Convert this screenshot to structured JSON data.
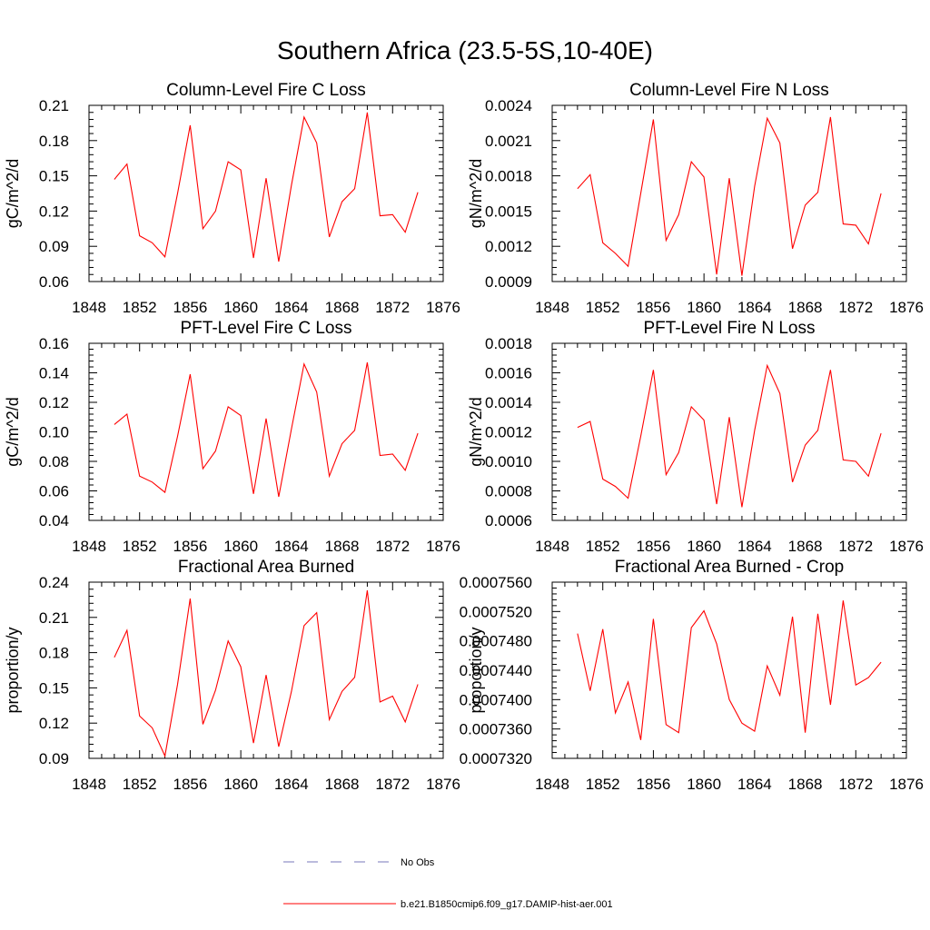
{
  "title": "Southern Africa (23.5-5S,10-40E)",
  "colors": {
    "model": "#ff0000",
    "obs": "#7777bb",
    "axis": "#000000"
  },
  "legend": [
    {
      "label": "No Obs",
      "style": "dashed",
      "color": "#7777bb"
    },
    {
      "label": "b.e21.B1850cmip6.f09_g17.DAMIP-hist-aer.001",
      "style": "solid",
      "color": "#ff0000"
    }
  ],
  "chart_data": [
    {
      "type": "line",
      "title": "Column-Level Fire C Loss",
      "ylabel": "gC/m^2/d",
      "xlim": [
        1848,
        1876
      ],
      "xticks": [
        "1848",
        "1852",
        "1856",
        "1860",
        "1864",
        "1868",
        "1872",
        "1876"
      ],
      "ylim": [
        0.06,
        0.21
      ],
      "yticks": [
        "0.06",
        "0.09",
        "0.12",
        "0.15",
        "0.18",
        "0.21"
      ],
      "x": [
        1850,
        1851,
        1852,
        1853,
        1854,
        1855,
        1856,
        1857,
        1858,
        1859,
        1860,
        1861,
        1862,
        1863,
        1864,
        1865,
        1866,
        1867,
        1868,
        1869,
        1870,
        1871,
        1872,
        1873,
        1874
      ],
      "series": [
        {
          "name": "b.e21.B1850cmip6.f09_g17.DAMIP-hist-aer.001",
          "values": [
            0.147,
            0.16,
            0.099,
            0.093,
            0.081,
            0.135,
            0.193,
            0.105,
            0.12,
            0.162,
            0.155,
            0.08,
            0.148,
            0.077,
            0.142,
            0.2,
            0.178,
            0.098,
            0.128,
            0.139,
            0.204,
            0.116,
            0.117,
            0.102,
            0.136
          ]
        }
      ]
    },
    {
      "type": "line",
      "title": "Column-Level Fire N Loss",
      "ylabel": "gN/m^2/d",
      "xlim": [
        1848,
        1876
      ],
      "xticks": [
        "1848",
        "1852",
        "1856",
        "1860",
        "1864",
        "1868",
        "1872",
        "1876"
      ],
      "ylim": [
        0.0009,
        0.0024
      ],
      "yticks": [
        "0.0009",
        "0.0012",
        "0.0015",
        "0.0018",
        "0.0021",
        "0.0024"
      ],
      "x": [
        1850,
        1851,
        1852,
        1853,
        1854,
        1855,
        1856,
        1857,
        1858,
        1859,
        1860,
        1861,
        1862,
        1863,
        1864,
        1865,
        1866,
        1867,
        1868,
        1869,
        1870,
        1871,
        1872,
        1873,
        1874
      ],
      "series": [
        {
          "name": "b.e21.B1850cmip6.f09_g17.DAMIP-hist-aer.001",
          "values": [
            0.00169,
            0.00181,
            0.00123,
            0.00114,
            0.00103,
            0.00165,
            0.00228,
            0.00125,
            0.00147,
            0.00192,
            0.00179,
            0.00096,
            0.00178,
            0.00095,
            0.00171,
            0.00229,
            0.00208,
            0.00118,
            0.00155,
            0.00166,
            0.0023,
            0.00139,
            0.00138,
            0.00122,
            0.00165
          ]
        }
      ]
    },
    {
      "type": "line",
      "title": "PFT-Level Fire C Loss",
      "ylabel": "gC/m^2/d",
      "xlim": [
        1848,
        1876
      ],
      "xticks": [
        "1848",
        "1852",
        "1856",
        "1860",
        "1864",
        "1868",
        "1872",
        "1876"
      ],
      "ylim": [
        0.04,
        0.16
      ],
      "yticks": [
        "0.04",
        "0.06",
        "0.08",
        "0.10",
        "0.12",
        "0.14",
        "0.16"
      ],
      "x": [
        1850,
        1851,
        1852,
        1853,
        1854,
        1855,
        1856,
        1857,
        1858,
        1859,
        1860,
        1861,
        1862,
        1863,
        1864,
        1865,
        1866,
        1867,
        1868,
        1869,
        1870,
        1871,
        1872,
        1873,
        1874
      ],
      "series": [
        {
          "name": "b.e21.B1850cmip6.f09_g17.DAMIP-hist-aer.001",
          "values": [
            0.105,
            0.112,
            0.07,
            0.066,
            0.059,
            0.097,
            0.139,
            0.075,
            0.087,
            0.117,
            0.111,
            0.058,
            0.109,
            0.056,
            0.102,
            0.146,
            0.127,
            0.07,
            0.092,
            0.101,
            0.147,
            0.084,
            0.085,
            0.074,
            0.099
          ]
        }
      ]
    },
    {
      "type": "line",
      "title": "PFT-Level Fire N Loss",
      "ylabel": "gN/m^2/d",
      "xlim": [
        1848,
        1876
      ],
      "xticks": [
        "1848",
        "1852",
        "1856",
        "1860",
        "1864",
        "1868",
        "1872",
        "1876"
      ],
      "ylim": [
        0.0006,
        0.0018
      ],
      "yticks": [
        "0.0006",
        "0.0008",
        "0.0010",
        "0.0012",
        "0.0014",
        "0.0016",
        "0.0018"
      ],
      "x": [
        1850,
        1851,
        1852,
        1853,
        1854,
        1855,
        1856,
        1857,
        1858,
        1859,
        1860,
        1861,
        1862,
        1863,
        1864,
        1865,
        1866,
        1867,
        1868,
        1869,
        1870,
        1871,
        1872,
        1873,
        1874
      ],
      "series": [
        {
          "name": "b.e21.B1850cmip6.f09_g17.DAMIP-hist-aer.001",
          "values": [
            0.00123,
            0.00127,
            0.00088,
            0.00083,
            0.00075,
            0.00117,
            0.00162,
            0.00091,
            0.00106,
            0.00137,
            0.00128,
            0.00071,
            0.0013,
            0.00069,
            0.00121,
            0.00165,
            0.00146,
            0.00086,
            0.00111,
            0.00121,
            0.00162,
            0.00101,
            0.001,
            0.0009,
            0.00119
          ]
        }
      ]
    },
    {
      "type": "line",
      "title": "Fractional Area Burned",
      "ylabel": "proportion/y",
      "xlim": [
        1848,
        1876
      ],
      "xticks": [
        "1848",
        "1852",
        "1856",
        "1860",
        "1864",
        "1868",
        "1872",
        "1876"
      ],
      "ylim": [
        0.09,
        0.24
      ],
      "yticks": [
        "0.09",
        "0.12",
        "0.15",
        "0.18",
        "0.21",
        "0.24"
      ],
      "x": [
        1850,
        1851,
        1852,
        1853,
        1854,
        1855,
        1856,
        1857,
        1858,
        1859,
        1860,
        1861,
        1862,
        1863,
        1864,
        1865,
        1866,
        1867,
        1868,
        1869,
        1870,
        1871,
        1872,
        1873,
        1874
      ],
      "series": [
        {
          "name": "b.e21.B1850cmip6.f09_g17.DAMIP-hist-aer.001",
          "values": [
            0.176,
            0.199,
            0.126,
            0.116,
            0.092,
            0.153,
            0.226,
            0.119,
            0.148,
            0.19,
            0.168,
            0.103,
            0.161,
            0.1,
            0.147,
            0.203,
            0.214,
            0.123,
            0.147,
            0.159,
            0.233,
            0.138,
            0.143,
            0.121,
            0.153
          ]
        }
      ]
    },
    {
      "type": "line",
      "title": "Fractional Area Burned - Crop",
      "ylabel": "proportion/y",
      "xlim": [
        1848,
        1876
      ],
      "xticks": [
        "1848",
        "1852",
        "1856",
        "1860",
        "1864",
        "1868",
        "1872",
        "1876"
      ],
      "ylim": [
        0.000732,
        0.000756
      ],
      "yticks": [
        "0.0007320",
        "0.0007360",
        "0.0007400",
        "0.0007440",
        "0.0007480",
        "0.0007520",
        "0.0007560"
      ],
      "x": [
        1850,
        1851,
        1852,
        1853,
        1854,
        1855,
        1856,
        1857,
        1858,
        1859,
        1860,
        1861,
        1862,
        1863,
        1864,
        1865,
        1866,
        1867,
        1868,
        1869,
        1870,
        1871,
        1872,
        1873,
        1874
      ],
      "series": [
        {
          "name": "b.e21.B1850cmip6.f09_g17.DAMIP-hist-aer.001",
          "values": [
            0.000749,
            0.0007412,
            0.0007496,
            0.0007382,
            0.0007424,
            0.0007345,
            0.000751,
            0.0007366,
            0.0007355,
            0.0007498,
            0.0007521,
            0.0007476,
            0.00074,
            0.0007368,
            0.0007357,
            0.0007446,
            0.0007406,
            0.0007513,
            0.0007355,
            0.0007517,
            0.0007393,
            0.0007535,
            0.000742,
            0.000743,
            0.0007451
          ]
        }
      ]
    }
  ]
}
